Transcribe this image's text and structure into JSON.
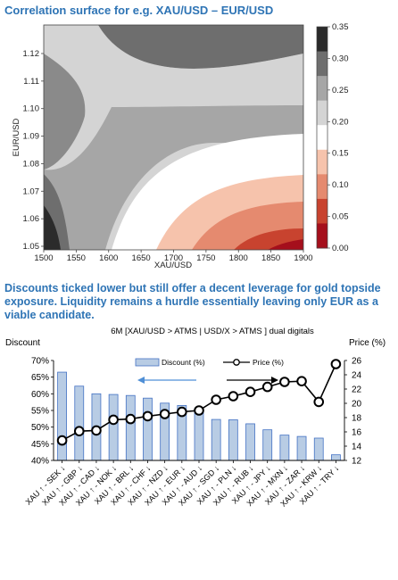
{
  "heading": "Correlation surface for e.g. XAU/USD – EUR/USD",
  "caption": "Discounts ticked lower but still offer a decent leverage for gold topside exposure. Liquidity remains a hurdle essentially leaving only EUR as a viable candidate.",
  "chart_data": [
    {
      "type": "heatmap",
      "title": "",
      "xlabel": "XAU/USD",
      "ylabel": "EUR/USD",
      "x_ticks": [
        "1500",
        "1550",
        "1600",
        "1650",
        "1700",
        "1750",
        "1800",
        "1850",
        "1900"
      ],
      "y_ticks": [
        "1.05",
        "1.06",
        "1.07",
        "1.08",
        "1.09",
        "1.10",
        "1.11",
        "1.12"
      ],
      "xlim": [
        1500,
        1900
      ],
      "ylim": [
        1.05,
        1.12
      ],
      "colorbar_ticks": [
        "0.35",
        "0.30",
        "0.25",
        "0.20",
        "0.15",
        "0.10",
        "0.05",
        "0.00"
      ],
      "colorbar_colors": [
        "#2b2b2b",
        "#6e6e6e",
        "#a6a6a6",
        "#d4d4d4",
        "#ffffff",
        "#f6c3ac",
        "#e58a6f",
        "#c8432f",
        "#a50f1c"
      ]
    },
    {
      "type": "bar",
      "title": "6M [XAU/USD > ATMS | USD/X > ATMS ] dual digitals",
      "ylabel": "Discount",
      "y2label": "Price (%)",
      "categories": [
        "XAU ↑ - SEK ↓",
        "XAU ↑ - GBP ↓",
        "XAU ↑ - CAD ↓",
        "XAU ↑ - NOK ↓",
        "XAU ↑ - BRL ↓",
        "XAU ↑ - CHF ↓",
        "XAU ↑ - NZD ↓",
        "XAU ↑ - EUR ↓",
        "XAU ↑ - AUD ↓",
        "XAU ↑ - SGD ↓",
        "XAU ↑ - PLN ↓",
        "XAU ↑ - RUB ↓",
        "XAU ↑ - JPY ↓",
        "XAU ↑ - MXN ↓",
        "XAU ↑ - ZAR ↓",
        "XAU ↑ - KRW ↓",
        "XAU ↑ - TRY ↓"
      ],
      "series": [
        {
          "name": "Discount (%)",
          "axis": "left",
          "values": [
            66.5,
            62.3,
            60.0,
            59.8,
            59.5,
            58.7,
            57.2,
            56.5,
            55.5,
            52.3,
            52.2,
            51.0,
            49.2,
            47.6,
            47.2,
            46.7,
            41.7
          ]
        },
        {
          "name": "Price (%)",
          "axis": "right",
          "values": [
            14.8,
            16.1,
            16.2,
            17.7,
            17.8,
            18.2,
            18.5,
            18.8,
            19.0,
            20.5,
            21.0,
            21.6,
            22.3,
            23.0,
            23.1,
            20.2,
            25.5
          ]
        }
      ],
      "ylim": [
        40,
        70
      ],
      "y_ticks": [
        "40%",
        "45%",
        "50%",
        "55%",
        "60%",
        "65%",
        "70%"
      ],
      "y2lim": [
        12,
        26
      ],
      "y2_ticks": [
        "12",
        "14",
        "16",
        "18",
        "20",
        "22",
        "24",
        "26"
      ],
      "annotations": [
        "blue arrow pointing left",
        "black arrow pointing right"
      ],
      "legend_position": "top"
    }
  ]
}
